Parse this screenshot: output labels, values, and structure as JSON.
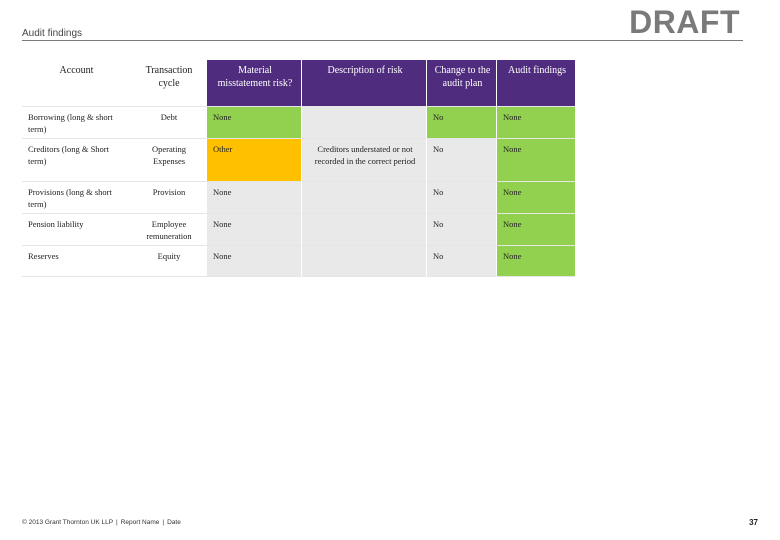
{
  "slide": {
    "title": "Audit findings",
    "watermark": "DRAFT",
    "page_number": "37"
  },
  "footer": {
    "copyright": "© 2013 Grant Thornton UK LLP",
    "report_name": "Report Name",
    "date": "Date"
  },
  "colors": {
    "header": "#4f2c7d",
    "green": "#92d050",
    "amber": "#ffc000",
    "grey": "#e9e9e9"
  },
  "table": {
    "headers": {
      "account": "Account",
      "cycle": "Transaction cycle",
      "risk": "Material misstatement risk?",
      "description": "Description of risk",
      "change": "Change to the audit plan",
      "findings": "Audit findings"
    },
    "rows": [
      {
        "account": "Borrowing (long & short term)",
        "cycle": "Debt",
        "risk": "None",
        "risk_color": "green",
        "description": "",
        "change": "No",
        "findings": "None"
      },
      {
        "account": "Creditors (long & Short term)",
        "cycle": "Operating Expenses",
        "risk": "Other",
        "risk_color": "amber",
        "description": "Creditors understated or not recorded in the correct period",
        "change": "No",
        "findings": "None"
      },
      {
        "account": "Provisions (long & short term)",
        "cycle": "Provision",
        "risk": "None",
        "risk_color": "green",
        "description": "",
        "change": "No",
        "findings": "None"
      },
      {
        "account": "Pension liability",
        "cycle": "Employee remuneration",
        "risk": "None",
        "risk_color": "green",
        "description": "",
        "change": "No",
        "findings": "None"
      },
      {
        "account": "Reserves",
        "cycle": "Equity",
        "risk": "None",
        "risk_color": "green",
        "description": "",
        "change": "No",
        "findings": "None"
      }
    ]
  }
}
